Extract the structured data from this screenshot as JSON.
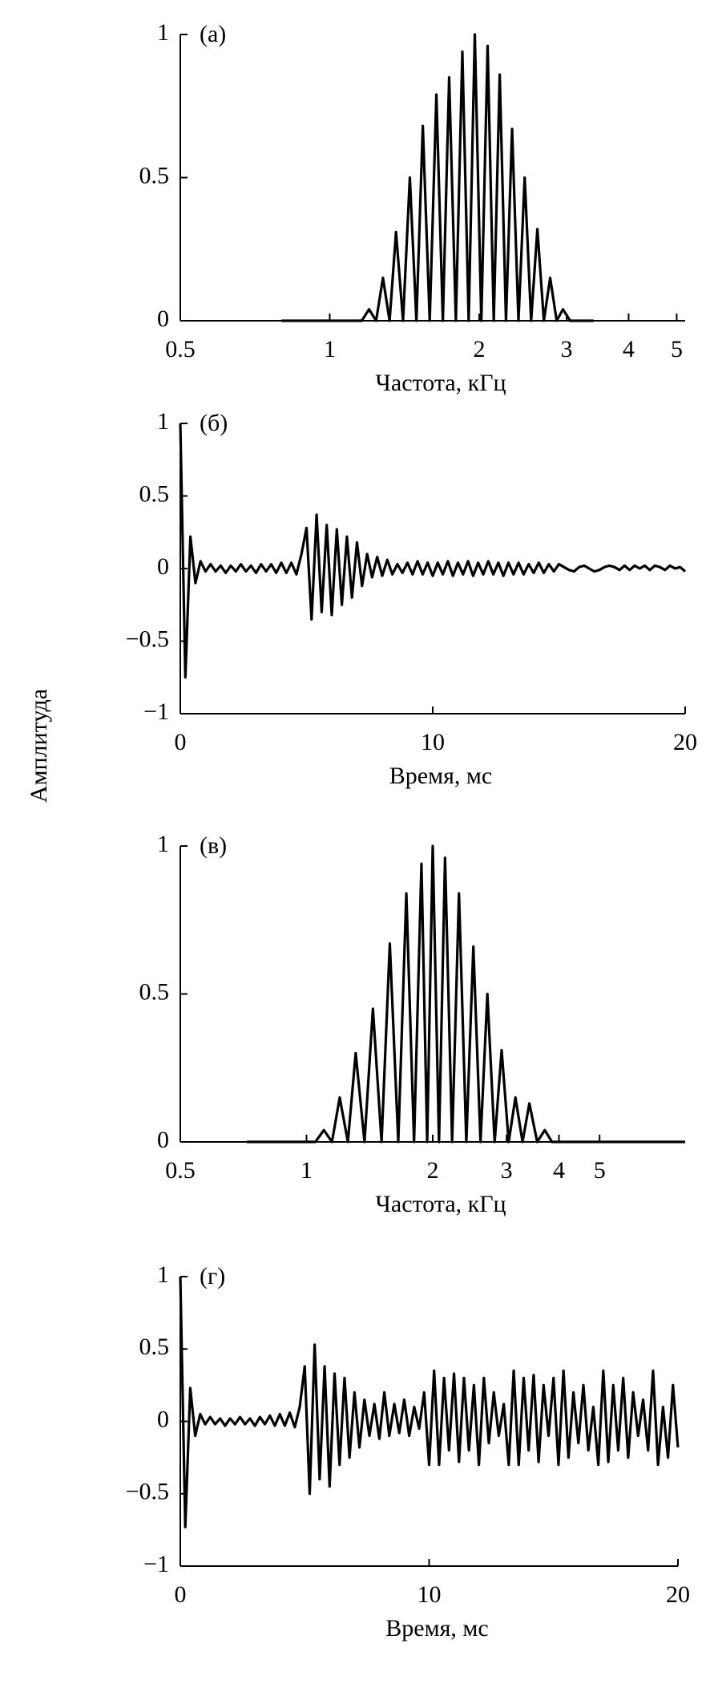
{
  "ylabel": "Амплитуда",
  "chart_data": [
    {
      "type": "line",
      "panel_label": "(а)",
      "xlabel": "Частота, кГц",
      "xscale": "log",
      "color": "#000000",
      "xlim": [
        0.5,
        5.2
      ],
      "ylim": [
        0,
        1
      ],
      "xticks": [
        0.5,
        1,
        2,
        3,
        4,
        5
      ],
      "yticks": [
        0,
        0.5,
        1
      ],
      "x": [
        0.8,
        1.16,
        1.2,
        1.24,
        1.28,
        1.32,
        1.36,
        1.405,
        1.45,
        1.495,
        1.54,
        1.59,
        1.64,
        1.69,
        1.74,
        1.795,
        1.85,
        1.905,
        1.96,
        2.02,
        2.08,
        2.14,
        2.2,
        2.265,
        2.33,
        2.4,
        2.47,
        2.545,
        2.62,
        2.7,
        2.78,
        2.865,
        2.95,
        3.05,
        3.4
      ],
      "values": [
        0,
        0,
        0.04,
        0,
        0.15,
        0,
        0.31,
        0,
        0.5,
        0,
        0.68,
        0,
        0.79,
        0,
        0.85,
        0,
        0.94,
        0,
        1.0,
        0,
        0.96,
        0,
        0.86,
        0,
        0.67,
        0,
        0.5,
        0,
        0.32,
        0,
        0.15,
        0,
        0.04,
        0,
        0
      ]
    },
    {
      "type": "line",
      "panel_label": "(б)",
      "xlabel": "Время, мс",
      "color": "#000000",
      "xlim": [
        0,
        20
      ],
      "ylim": [
        -1,
        1
      ],
      "xticks": [
        0,
        10,
        20
      ],
      "yticks": [
        {
          "value": -1,
          "label": "−1"
        },
        {
          "value": -0.5,
          "label": "−0.5"
        },
        0,
        0.5,
        1
      ],
      "x": [
        0,
        0.2,
        0.4,
        0.6,
        0.8,
        1,
        1.2,
        1.4,
        1.6,
        1.8,
        2,
        2.2,
        2.4,
        2.6,
        2.8,
        3,
        3.2,
        3.4,
        3.6,
        3.8,
        4,
        4.2,
        4.4,
        4.6,
        4.8,
        5,
        5.2,
        5.4,
        5.6,
        5.8,
        6,
        6.2,
        6.4,
        6.6,
        6.8,
        7,
        7.2,
        7.4,
        7.6,
        7.8,
        8,
        8.2,
        8.4,
        8.6,
        8.8,
        9,
        9.2,
        9.4,
        9.6,
        9.8,
        10,
        10.2,
        10.4,
        10.6,
        10.8,
        11,
        11.2,
        11.4,
        11.6,
        11.8,
        12,
        12.2,
        12.4,
        12.6,
        12.8,
        13,
        13.2,
        13.4,
        13.6,
        13.8,
        14,
        14.2,
        14.4,
        14.6,
        14.8,
        15,
        15.2,
        15.4,
        15.6,
        15.8,
        16,
        16.2,
        16.4,
        16.6,
        16.8,
        17,
        17.2,
        17.4,
        17.6,
        17.8,
        18,
        18.2,
        18.4,
        18.6,
        18.8,
        19,
        19.2,
        19.4,
        19.6,
        19.8,
        20
      ],
      "values": [
        1,
        -0.75,
        0.22,
        -0.1,
        0.05,
        -0.02,
        0.03,
        -0.02,
        0.02,
        -0.03,
        0.02,
        -0.02,
        0.03,
        -0.02,
        0.02,
        -0.03,
        0.03,
        -0.02,
        0.03,
        -0.03,
        0.04,
        -0.03,
        0.04,
        -0.04,
        0.1,
        0.28,
        -0.35,
        0.37,
        -0.3,
        0.3,
        -0.32,
        0.27,
        -0.25,
        0.22,
        -0.2,
        0.18,
        -0.12,
        0.1,
        -0.06,
        0.08,
        -0.05,
        0.06,
        -0.04,
        0.03,
        -0.03,
        0.04,
        -0.04,
        0.05,
        -0.04,
        0.04,
        -0.05,
        0.04,
        -0.04,
        0.05,
        -0.05,
        0.04,
        -0.04,
        0.05,
        -0.05,
        0.04,
        -0.04,
        0.05,
        -0.04,
        0.04,
        -0.05,
        0.04,
        -0.04,
        0.04,
        -0.04,
        0.03,
        -0.03,
        0.04,
        -0.03,
        0.03,
        -0.02,
        0.03,
        0.01,
        -0.01,
        -0.02,
        0.01,
        0.02,
        0,
        -0.02,
        -0.01,
        0.01,
        0.02,
        0.01,
        -0.01,
        0.02,
        -0.01,
        0.02,
        0,
        0.02,
        -0.01,
        0.02,
        0.01,
        -0.01,
        0.02,
        0,
        0.01,
        -0.02
      ]
    },
    {
      "type": "line",
      "panel_label": "(в)",
      "xlabel": "Частота, кГц",
      "xscale": "log",
      "color": "#000000",
      "xlim": [
        0.5,
        8
      ],
      "ylim": [
        0,
        1
      ],
      "xticks": [
        0.5,
        1,
        2,
        3,
        4,
        5
      ],
      "yticks": [
        0,
        0.5,
        1
      ],
      "x": [
        0.72,
        1.05,
        1.1,
        1.15,
        1.2,
        1.255,
        1.31,
        1.375,
        1.44,
        1.51,
        1.58,
        1.655,
        1.73,
        1.805,
        1.88,
        1.94,
        2.0,
        2.07,
        2.14,
        2.225,
        2.31,
        2.405,
        2.5,
        2.6,
        2.7,
        2.81,
        2.92,
        3.035,
        3.15,
        3.275,
        3.4,
        3.55,
        3.7,
        3.85,
        8
      ],
      "values": [
        0,
        0,
        0.04,
        0,
        0.15,
        0,
        0.3,
        0,
        0.45,
        0,
        0.67,
        0,
        0.84,
        0,
        0.94,
        0,
        1.0,
        0,
        0.96,
        0,
        0.84,
        0,
        0.66,
        0,
        0.5,
        0,
        0.31,
        0,
        0.15,
        0,
        0.13,
        0,
        0.04,
        0,
        0
      ]
    },
    {
      "type": "line",
      "panel_label": "(г)",
      "xlabel": "Время, мс",
      "color": "#000000",
      "xlim": [
        0,
        20
      ],
      "ylim": [
        -1,
        1
      ],
      "xticks": [
        0,
        10,
        20
      ],
      "yticks": [
        {
          "value": -1,
          "label": "−1"
        },
        {
          "value": -0.5,
          "label": "−0.5"
        },
        0,
        0.5,
        1
      ],
      "x": [
        0,
        0.2,
        0.4,
        0.6,
        0.8,
        1,
        1.2,
        1.4,
        1.6,
        1.8,
        2,
        2.2,
        2.4,
        2.6,
        2.8,
        3,
        3.2,
        3.4,
        3.6,
        3.8,
        4,
        4.2,
        4.4,
        4.6,
        4.8,
        5,
        5.2,
        5.4,
        5.6,
        5.8,
        6,
        6.2,
        6.4,
        6.6,
        6.8,
        7,
        7.2,
        7.4,
        7.6,
        7.8,
        8,
        8.2,
        8.4,
        8.6,
        8.8,
        9,
        9.2,
        9.4,
        9.6,
        9.8,
        10,
        10.2,
        10.4,
        10.6,
        10.8,
        11,
        11.2,
        11.4,
        11.6,
        11.8,
        12,
        12.2,
        12.4,
        12.6,
        12.8,
        13,
        13.2,
        13.4,
        13.6,
        13.8,
        14,
        14.2,
        14.4,
        14.6,
        14.8,
        15,
        15.2,
        15.4,
        15.6,
        15.8,
        16,
        16.2,
        16.4,
        16.6,
        16.8,
        17,
        17.2,
        17.4,
        17.6,
        17.8,
        18,
        18.2,
        18.4,
        18.6,
        18.8,
        19,
        19.2,
        19.4,
        19.6,
        19.8,
        20
      ],
      "values": [
        1,
        -0.73,
        0.23,
        -0.1,
        0.05,
        -0.02,
        0.03,
        -0.02,
        0.02,
        -0.03,
        0.02,
        -0.02,
        0.03,
        -0.02,
        0.02,
        -0.03,
        0.03,
        -0.02,
        0.04,
        -0.03,
        0.05,
        -0.03,
        0.06,
        -0.04,
        0.1,
        0.38,
        -0.5,
        0.53,
        -0.4,
        0.38,
        -0.45,
        0.33,
        -0.3,
        0.3,
        -0.25,
        0.2,
        -0.18,
        0.15,
        -0.1,
        0.12,
        -0.12,
        0.2,
        -0.1,
        0.12,
        -0.08,
        0.15,
        -0.1,
        0.1,
        -0.05,
        0.2,
        -0.3,
        0.35,
        -0.3,
        0.3,
        -0.2,
        0.33,
        -0.28,
        0.3,
        -0.2,
        0.25,
        -0.3,
        0.3,
        -0.15,
        0.2,
        -0.1,
        0.12,
        -0.3,
        0.35,
        -0.3,
        0.3,
        -0.2,
        0.32,
        -0.28,
        0.25,
        -0.1,
        0.3,
        -0.3,
        0.35,
        -0.25,
        0.2,
        -0.15,
        0.25,
        -0.2,
        0.1,
        -0.3,
        0.35,
        -0.28,
        0.25,
        -0.2,
        0.3,
        -0.25,
        0.2,
        -0.1,
        0.15,
        -0.2,
        0.35,
        -0.3,
        0.1,
        -0.25,
        0.25,
        -0.18
      ]
    }
  ]
}
